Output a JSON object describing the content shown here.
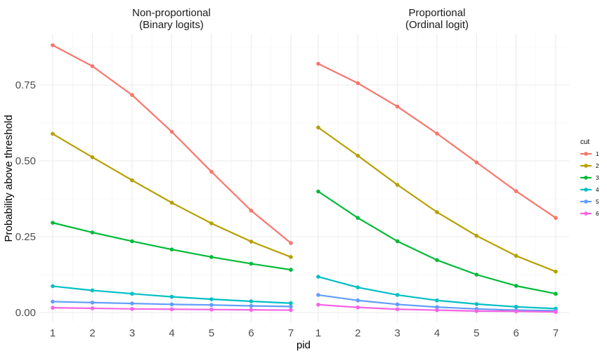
{
  "chart_data": {
    "type": "line",
    "xlabel": "pid",
    "ylabel": "Probability above threshold",
    "x": [
      1,
      2,
      3,
      4,
      5,
      6,
      7
    ],
    "xlim": [
      1,
      7
    ],
    "ylim": [
      0,
      0.88
    ],
    "yticks": [
      0.0,
      0.25,
      0.5,
      0.75
    ],
    "ytick_labels": [
      "0.00",
      "0.25",
      "0.50",
      "0.75"
    ],
    "grid": true,
    "legend": {
      "title": "cut",
      "position": "right",
      "entries": [
        "1",
        "2",
        "3",
        "4",
        "5",
        "6"
      ]
    },
    "colors": [
      "#F8766D",
      "#B79F00",
      "#00BA38",
      "#00BFC4",
      "#619CFF",
      "#F564E3"
    ],
    "panels": [
      {
        "title": "Non-proportional\n(Binary logits)",
        "title_line1": "Non-proportional",
        "title_line2": "(Binary logits)",
        "series": [
          {
            "name": "1",
            "values": [
              0.881,
              0.812,
              0.717,
              0.596,
              0.464,
              0.336,
              0.229
            ]
          },
          {
            "name": "2",
            "values": [
              0.589,
              0.512,
              0.436,
              0.362,
              0.294,
              0.234,
              0.183
            ]
          },
          {
            "name": "3",
            "values": [
              0.296,
              0.264,
              0.235,
              0.208,
              0.183,
              0.161,
              0.141
            ]
          },
          {
            "name": "4",
            "values": [
              0.087,
              0.073,
              0.062,
              0.052,
              0.044,
              0.037,
              0.031
            ]
          },
          {
            "name": "5",
            "values": [
              0.036,
              0.033,
              0.03,
              0.027,
              0.025,
              0.022,
              0.02
            ]
          },
          {
            "name": "6",
            "values": [
              0.016,
              0.014,
              0.012,
              0.011,
              0.01,
              0.009,
              0.008
            ]
          }
        ]
      },
      {
        "title": "Proportional\n(Ordinal logit)",
        "title_line1": "Proportional",
        "title_line2": "(Ordinal logit)",
        "series": [
          {
            "name": "1",
            "values": [
              0.82,
              0.756,
              0.679,
              0.59,
              0.495,
              0.4,
              0.312
            ]
          },
          {
            "name": "2",
            "values": [
              0.61,
              0.517,
              0.421,
              0.331,
              0.253,
              0.187,
              0.135
            ]
          },
          {
            "name": "3",
            "values": [
              0.399,
              0.312,
              0.235,
              0.173,
              0.125,
              0.088,
              0.062
            ]
          },
          {
            "name": "4",
            "values": [
              0.118,
              0.083,
              0.058,
              0.04,
              0.028,
              0.019,
              0.013
            ]
          },
          {
            "name": "5",
            "values": [
              0.058,
              0.04,
              0.027,
              0.018,
              0.012,
              0.008,
              0.006
            ]
          },
          {
            "name": "6",
            "values": [
              0.026,
              0.017,
              0.011,
              0.008,
              0.005,
              0.004,
              0.002
            ]
          }
        ]
      }
    ]
  }
}
